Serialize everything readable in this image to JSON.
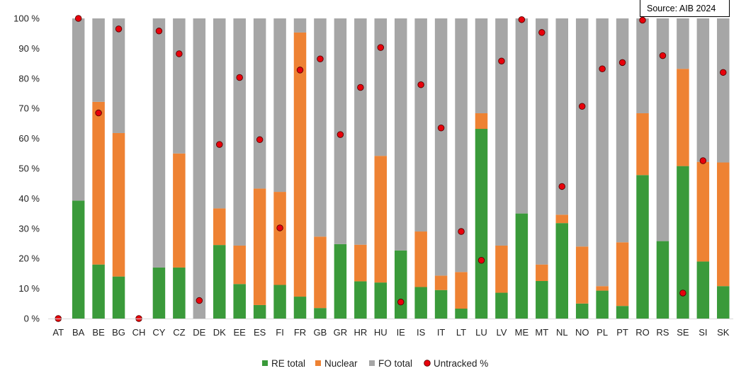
{
  "source_note": "Source: AIB 2024",
  "colors": {
    "re_total": "#3a9a3a",
    "nuclear": "#ee8233",
    "fo_total": "#a6a6a6",
    "untracked": "#e8000b",
    "grid": "#d9d9d9"
  },
  "chart_data": {
    "type": "bar",
    "stacked": true,
    "title": "",
    "xlabel": "",
    "ylabel": "",
    "ylim": [
      0,
      100
    ],
    "y_ticks": [
      "0 %",
      "10 %",
      "20 %",
      "30 %",
      "40 %",
      "50 %",
      "60 %",
      "70 %",
      "80 %",
      "90 %",
      "100 %"
    ],
    "grid": false,
    "legend_position": "bottom",
    "categories": [
      "AT",
      "BA",
      "BE",
      "BG",
      "CH",
      "CY",
      "CZ",
      "DE",
      "DK",
      "EE",
      "ES",
      "FI",
      "FR",
      "GB",
      "GR",
      "HR",
      "HU",
      "IE",
      "IS",
      "IT",
      "LT",
      "LU",
      "LV",
      "ME",
      "MT",
      "NL",
      "NO",
      "PL",
      "PT",
      "RO",
      "RS",
      "SE",
      "SI",
      "SK"
    ],
    "series": [
      {
        "name": "RE total",
        "kind": "bar",
        "values": [
          0,
          39.3,
          18,
          14,
          0,
          17,
          17,
          0,
          24.5,
          11.5,
          4.5,
          11.2,
          7.3,
          3.5,
          24.8,
          12.4,
          12,
          22.7,
          10.5,
          9.5,
          3.3,
          63.2,
          8.6,
          35,
          12.5,
          31.8,
          5,
          9.3,
          4.2,
          47.8,
          25.8,
          50.8,
          19,
          10.8
        ]
      },
      {
        "name": "Nuclear",
        "kind": "bar",
        "values": [
          0,
          0,
          54.2,
          47.8,
          0,
          0,
          38,
          0,
          12.2,
          12.8,
          38.8,
          31,
          88,
          23.8,
          0,
          12.2,
          42.2,
          0,
          18.5,
          4.8,
          12.2,
          5.2,
          15.7,
          0,
          5.5,
          2.8,
          19,
          1.5,
          21.2,
          20.6,
          0,
          32.4,
          33.2,
          41.2
        ]
      },
      {
        "name": "FO total",
        "kind": "bar",
        "values": [
          0,
          60.7,
          27.8,
          38.2,
          0,
          83,
          45,
          100,
          63.3,
          75.7,
          56.7,
          57.8,
          4.7,
          72.7,
          75.2,
          75.4,
          45.8,
          77.3,
          71,
          85.7,
          84.5,
          31.6,
          75.7,
          65,
          82,
          65.4,
          76,
          89.2,
          74.6,
          31.6,
          74.2,
          16.8,
          47.8,
          48
        ]
      },
      {
        "name": "Untracked %",
        "kind": "marker",
        "values": [
          0,
          100,
          68.5,
          96.5,
          0,
          95.8,
          88.2,
          6,
          58,
          80.3,
          59.6,
          30.2,
          82.8,
          86.5,
          61.3,
          77,
          90.3,
          5.5,
          77.9,
          63.5,
          29,
          19.4,
          85.8,
          99.6,
          95.3,
          44,
          70.7,
          83.2,
          85.3,
          99.4,
          87.6,
          8.5,
          52.6,
          82
        ]
      }
    ]
  }
}
